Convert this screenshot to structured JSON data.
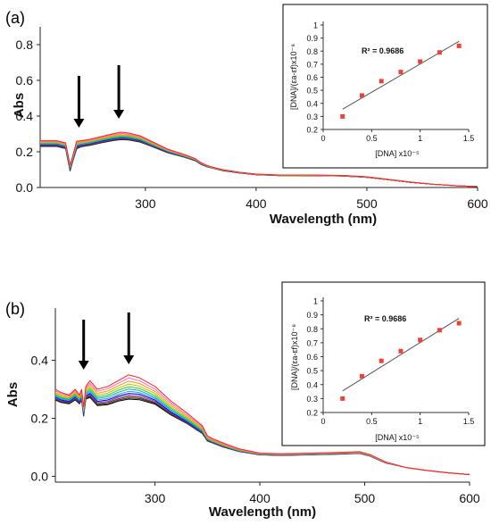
{
  "chart_data": [
    {
      "panel_label": "(a)",
      "type": "line",
      "xlabel": "Wavelength (nm)",
      "ylabel": "Abs",
      "xlim": [
        205,
        600
      ],
      "ylim": [
        0,
        0.9
      ],
      "xticks": [
        300,
        400,
        500,
        600
      ],
      "xtick_labels": [
        "300",
        "400",
        "500",
        "600"
      ],
      "yticks": [
        0,
        0.2,
        0.4,
        0.6,
        0.8
      ],
      "ytick_labels": [
        "0.0",
        "0.2",
        "0.4",
        "0.6",
        "0.8"
      ],
      "grid": false,
      "arrows_at_nm": [
        240,
        276
      ],
      "series_count": 12,
      "series_colors": [
        "#ff2020",
        "#ff66cc",
        "#ff9900",
        "#c0c000",
        "#33cc33",
        "#00b0b0",
        "#3399ff",
        "#0000cc",
        "#9933cc",
        "#663300",
        "#333333",
        "#000000"
      ],
      "spectrum_x": [
        205,
        210,
        220,
        228,
        232,
        235,
        238,
        242,
        250,
        260,
        270,
        278,
        285,
        295,
        305,
        320,
        335,
        345,
        350,
        355,
        360,
        370,
        385,
        400,
        420,
        450,
        480,
        500,
        520,
        540,
        560,
        580,
        600
      ],
      "spectra": [
        [
          0.262,
          0.262,
          0.262,
          0.25,
          0.125,
          0.19,
          0.26,
          0.262,
          0.27,
          0.285,
          0.3,
          0.31,
          0.305,
          0.29,
          0.26,
          0.215,
          0.185,
          0.162,
          0.14,
          0.125,
          0.115,
          0.1,
          0.085,
          0.075,
          0.07,
          0.07,
          0.067,
          0.06,
          0.045,
          0.03,
          0.018,
          0.01,
          0.005
        ],
        [
          0.258,
          0.258,
          0.258,
          0.246,
          0.122,
          0.186,
          0.255,
          0.258,
          0.266,
          0.281,
          0.295,
          0.303,
          0.299,
          0.285,
          0.256,
          0.212,
          0.183,
          0.16,
          0.139,
          0.124,
          0.114,
          0.099,
          0.085,
          0.075,
          0.07,
          0.07,
          0.067,
          0.06,
          0.045,
          0.03,
          0.018,
          0.01,
          0.005
        ],
        [
          0.255,
          0.255,
          0.255,
          0.243,
          0.12,
          0.183,
          0.25,
          0.254,
          0.262,
          0.277,
          0.29,
          0.297,
          0.294,
          0.281,
          0.252,
          0.21,
          0.181,
          0.159,
          0.138,
          0.123,
          0.113,
          0.099,
          0.084,
          0.074,
          0.07,
          0.069,
          0.066,
          0.059,
          0.045,
          0.03,
          0.018,
          0.01,
          0.005
        ],
        [
          0.252,
          0.252,
          0.252,
          0.24,
          0.117,
          0.18,
          0.246,
          0.25,
          0.258,
          0.273,
          0.286,
          0.292,
          0.29,
          0.277,
          0.249,
          0.208,
          0.179,
          0.158,
          0.137,
          0.122,
          0.113,
          0.098,
          0.084,
          0.074,
          0.069,
          0.069,
          0.066,
          0.059,
          0.044,
          0.03,
          0.018,
          0.01,
          0.005
        ],
        [
          0.249,
          0.249,
          0.249,
          0.237,
          0.114,
          0.177,
          0.242,
          0.247,
          0.255,
          0.269,
          0.282,
          0.288,
          0.286,
          0.274,
          0.246,
          0.206,
          0.178,
          0.157,
          0.136,
          0.122,
          0.112,
          0.098,
          0.084,
          0.074,
          0.069,
          0.069,
          0.066,
          0.059,
          0.044,
          0.03,
          0.018,
          0.01,
          0.005
        ],
        [
          0.246,
          0.246,
          0.246,
          0.234,
          0.111,
          0.174,
          0.238,
          0.244,
          0.252,
          0.266,
          0.278,
          0.284,
          0.282,
          0.27,
          0.243,
          0.204,
          0.176,
          0.156,
          0.135,
          0.121,
          0.112,
          0.097,
          0.083,
          0.073,
          0.069,
          0.068,
          0.065,
          0.058,
          0.044,
          0.03,
          0.018,
          0.01,
          0.005
        ],
        [
          0.243,
          0.243,
          0.243,
          0.231,
          0.108,
          0.171,
          0.234,
          0.241,
          0.249,
          0.263,
          0.275,
          0.281,
          0.279,
          0.267,
          0.241,
          0.202,
          0.175,
          0.155,
          0.134,
          0.12,
          0.111,
          0.097,
          0.083,
          0.073,
          0.068,
          0.068,
          0.065,
          0.058,
          0.044,
          0.03,
          0.018,
          0.01,
          0.005
        ],
        [
          0.24,
          0.24,
          0.24,
          0.228,
          0.105,
          0.168,
          0.23,
          0.238,
          0.246,
          0.26,
          0.272,
          0.278,
          0.276,
          0.264,
          0.239,
          0.2,
          0.174,
          0.154,
          0.133,
          0.12,
          0.111,
          0.096,
          0.082,
          0.073,
          0.068,
          0.068,
          0.065,
          0.058,
          0.043,
          0.029,
          0.018,
          0.01,
          0.005
        ],
        [
          0.237,
          0.237,
          0.237,
          0.225,
          0.102,
          0.165,
          0.226,
          0.235,
          0.243,
          0.257,
          0.269,
          0.275,
          0.273,
          0.262,
          0.237,
          0.199,
          0.173,
          0.153,
          0.132,
          0.119,
          0.11,
          0.096,
          0.082,
          0.072,
          0.068,
          0.067,
          0.064,
          0.057,
          0.043,
          0.029,
          0.018,
          0.01,
          0.005
        ],
        [
          0.234,
          0.234,
          0.234,
          0.222,
          0.099,
          0.162,
          0.222,
          0.232,
          0.24,
          0.254,
          0.266,
          0.272,
          0.27,
          0.259,
          0.235,
          0.197,
          0.172,
          0.152,
          0.131,
          0.118,
          0.11,
          0.095,
          0.081,
          0.072,
          0.067,
          0.067,
          0.064,
          0.057,
          0.043,
          0.029,
          0.018,
          0.01,
          0.005
        ],
        [
          0.232,
          0.232,
          0.232,
          0.22,
          0.096,
          0.16,
          0.219,
          0.23,
          0.238,
          0.252,
          0.264,
          0.27,
          0.268,
          0.257,
          0.233,
          0.196,
          0.171,
          0.151,
          0.131,
          0.118,
          0.11,
          0.095,
          0.081,
          0.072,
          0.067,
          0.067,
          0.064,
          0.057,
          0.043,
          0.029,
          0.018,
          0.01,
          0.005
        ],
        [
          0.23,
          0.23,
          0.23,
          0.218,
          0.093,
          0.158,
          0.217,
          0.228,
          0.236,
          0.25,
          0.262,
          0.268,
          0.266,
          0.255,
          0.232,
          0.195,
          0.17,
          0.15,
          0.13,
          0.117,
          0.109,
          0.094,
          0.081,
          0.071,
          0.067,
          0.066,
          0.064,
          0.057,
          0.043,
          0.029,
          0.018,
          0.01,
          0.005
        ]
      ],
      "inset": {
        "type": "scatter",
        "xlabel": "[DNA] x10⁻⁵",
        "ylabel": "[DNA]/(εa-εf)x10⁻⁸",
        "annotation": "R² = 0.9686",
        "xlim": [
          0,
          1.5
        ],
        "ylim": [
          0.2,
          1
        ],
        "xticks": [
          0,
          0.5,
          1,
          1.5
        ],
        "xtick_labels": [
          "0",
          "0.5",
          "1",
          "1.5"
        ],
        "yticks": [
          0.2,
          0.3,
          0.4,
          0.5,
          0.6,
          0.7,
          0.8,
          0.9,
          1
        ],
        "ytick_labels": [
          "0.2",
          "0.3",
          "0.4",
          "0.5",
          "0.6",
          "0.7",
          "0.8",
          "0.9",
          "1"
        ],
        "x": [
          0.2,
          0.4,
          0.6,
          0.8,
          1.0,
          1.2,
          1.4
        ],
        "y": [
          0.3,
          0.46,
          0.57,
          0.64,
          0.72,
          0.79,
          0.84
        ],
        "fit_x": [
          0.2,
          1.4
        ],
        "fit_y": [
          0.355,
          0.875
        ],
        "marker_color": "#e8443a",
        "fit_color": "#555555"
      }
    },
    {
      "panel_label": "(b)",
      "type": "line",
      "xlabel": "Wavelength (nm)",
      "ylabel": "Abs",
      "xlim": [
        205,
        600
      ],
      "ylim": [
        -0.02,
        0.58
      ],
      "xticks": [
        300,
        400,
        500,
        600
      ],
      "xtick_labels": [
        "300",
        "400",
        "500",
        "600"
      ],
      "yticks": [
        0,
        0.2,
        0.4
      ],
      "ytick_labels": [
        "0.0",
        "0.2",
        "0.4"
      ],
      "grid": false,
      "arrows_at_nm": [
        232,
        275
      ],
      "series_count": 12,
      "series_colors": [
        "#ff2020",
        "#ff66cc",
        "#ff9900",
        "#c0c000",
        "#33cc33",
        "#00b0b0",
        "#3399ff",
        "#0000cc",
        "#9933cc",
        "#663300",
        "#333333",
        "#000000"
      ],
      "spectrum_x": [
        205,
        210,
        218,
        224,
        228,
        230,
        232,
        234,
        238,
        245,
        255,
        265,
        275,
        285,
        300,
        315,
        330,
        345,
        350,
        355,
        365,
        380,
        400,
        420,
        450,
        480,
        495,
        505,
        520,
        540,
        560,
        580,
        600
      ],
      "spectra": [
        [
          0.3,
          0.29,
          0.28,
          0.3,
          0.28,
          0.3,
          0.24,
          0.31,
          0.33,
          0.3,
          0.31,
          0.33,
          0.35,
          0.34,
          0.31,
          0.26,
          0.22,
          0.175,
          0.14,
          0.13,
          0.115,
          0.095,
          0.08,
          0.078,
          0.08,
          0.083,
          0.085,
          0.075,
          0.05,
          0.03,
          0.02,
          0.012,
          0.006
        ],
        [
          0.295,
          0.286,
          0.277,
          0.296,
          0.277,
          0.296,
          0.236,
          0.304,
          0.322,
          0.293,
          0.302,
          0.321,
          0.339,
          0.33,
          0.301,
          0.253,
          0.214,
          0.171,
          0.137,
          0.127,
          0.112,
          0.093,
          0.079,
          0.077,
          0.079,
          0.082,
          0.084,
          0.074,
          0.049,
          0.03,
          0.02,
          0.012,
          0.006
        ],
        [
          0.29,
          0.281,
          0.273,
          0.291,
          0.273,
          0.291,
          0.232,
          0.298,
          0.315,
          0.286,
          0.294,
          0.312,
          0.328,
          0.32,
          0.293,
          0.246,
          0.209,
          0.167,
          0.134,
          0.125,
          0.11,
          0.092,
          0.078,
          0.076,
          0.078,
          0.081,
          0.083,
          0.073,
          0.049,
          0.03,
          0.02,
          0.012,
          0.006
        ],
        [
          0.286,
          0.277,
          0.27,
          0.287,
          0.27,
          0.287,
          0.228,
          0.293,
          0.308,
          0.279,
          0.287,
          0.304,
          0.318,
          0.311,
          0.286,
          0.24,
          0.204,
          0.163,
          0.132,
          0.123,
          0.108,
          0.091,
          0.077,
          0.076,
          0.078,
          0.081,
          0.082,
          0.073,
          0.048,
          0.03,
          0.02,
          0.012,
          0.006
        ],
        [
          0.282,
          0.273,
          0.267,
          0.283,
          0.267,
          0.283,
          0.225,
          0.288,
          0.302,
          0.273,
          0.28,
          0.297,
          0.309,
          0.303,
          0.279,
          0.235,
          0.2,
          0.16,
          0.13,
          0.121,
          0.107,
          0.09,
          0.077,
          0.075,
          0.077,
          0.08,
          0.082,
          0.072,
          0.048,
          0.03,
          0.02,
          0.012,
          0.006
        ],
        [
          0.278,
          0.27,
          0.264,
          0.279,
          0.264,
          0.279,
          0.222,
          0.284,
          0.296,
          0.268,
          0.274,
          0.29,
          0.301,
          0.296,
          0.273,
          0.23,
          0.196,
          0.157,
          0.128,
          0.12,
          0.106,
          0.089,
          0.076,
          0.075,
          0.077,
          0.08,
          0.081,
          0.072,
          0.048,
          0.03,
          0.02,
          0.012,
          0.006
        ],
        [
          0.275,
          0.267,
          0.261,
          0.276,
          0.261,
          0.276,
          0.219,
          0.28,
          0.291,
          0.263,
          0.268,
          0.283,
          0.293,
          0.289,
          0.268,
          0.226,
          0.193,
          0.155,
          0.127,
          0.119,
          0.105,
          0.088,
          0.076,
          0.074,
          0.076,
          0.079,
          0.081,
          0.071,
          0.047,
          0.03,
          0.02,
          0.012,
          0.006
        ],
        [
          0.272,
          0.264,
          0.258,
          0.273,
          0.258,
          0.273,
          0.216,
          0.276,
          0.286,
          0.258,
          0.263,
          0.277,
          0.286,
          0.283,
          0.263,
          0.222,
          0.19,
          0.153,
          0.126,
          0.118,
          0.104,
          0.088,
          0.075,
          0.074,
          0.076,
          0.079,
          0.08,
          0.071,
          0.047,
          0.03,
          0.02,
          0.012,
          0.006
        ],
        [
          0.269,
          0.261,
          0.256,
          0.27,
          0.256,
          0.27,
          0.214,
          0.273,
          0.282,
          0.254,
          0.258,
          0.272,
          0.28,
          0.277,
          0.259,
          0.219,
          0.188,
          0.151,
          0.125,
          0.117,
          0.103,
          0.087,
          0.075,
          0.073,
          0.075,
          0.078,
          0.08,
          0.071,
          0.047,
          0.03,
          0.02,
          0.012,
          0.006
        ],
        [
          0.267,
          0.259,
          0.254,
          0.267,
          0.254,
          0.267,
          0.212,
          0.27,
          0.278,
          0.25,
          0.254,
          0.267,
          0.275,
          0.272,
          0.255,
          0.216,
          0.186,
          0.15,
          0.124,
          0.116,
          0.102,
          0.087,
          0.074,
          0.073,
          0.075,
          0.078,
          0.08,
          0.07,
          0.047,
          0.03,
          0.02,
          0.012,
          0.006
        ],
        [
          0.265,
          0.257,
          0.252,
          0.265,
          0.252,
          0.265,
          0.21,
          0.268,
          0.275,
          0.247,
          0.25,
          0.263,
          0.27,
          0.268,
          0.252,
          0.214,
          0.184,
          0.149,
          0.123,
          0.115,
          0.102,
          0.086,
          0.074,
          0.073,
          0.075,
          0.078,
          0.079,
          0.07,
          0.046,
          0.03,
          0.02,
          0.012,
          0.006
        ],
        [
          0.263,
          0.255,
          0.25,
          0.263,
          0.25,
          0.263,
          0.208,
          0.266,
          0.272,
          0.244,
          0.247,
          0.259,
          0.266,
          0.264,
          0.249,
          0.212,
          0.183,
          0.148,
          0.122,
          0.115,
          0.101,
          0.086,
          0.074,
          0.072,
          0.074,
          0.077,
          0.079,
          0.07,
          0.046,
          0.03,
          0.02,
          0.012,
          0.006
        ]
      ],
      "inset": {
        "type": "scatter",
        "xlabel": "[DNA] x10⁻⁵",
        "ylabel": "[DNA]/(εa-εf)x10⁻⁸",
        "annotation": "R² = 0.9686",
        "xlim": [
          0,
          1.5
        ],
        "ylim": [
          0.2,
          1
        ],
        "xticks": [
          0,
          0.5,
          1,
          1.5
        ],
        "xtick_labels": [
          "0",
          "0.5",
          "1",
          "1.5"
        ],
        "yticks": [
          0.2,
          0.3,
          0.4,
          0.5,
          0.6,
          0.7,
          0.8,
          0.9,
          1
        ],
        "ytick_labels": [
          "0.2",
          "0.3",
          "0.4",
          "0.5",
          "0.6",
          "0.7",
          "0.8",
          "0.9",
          "1"
        ],
        "x": [
          0.2,
          0.4,
          0.6,
          0.8,
          1.0,
          1.2,
          1.4
        ],
        "y": [
          0.3,
          0.46,
          0.57,
          0.64,
          0.72,
          0.79,
          0.84
        ],
        "fit_x": [
          0.2,
          1.4
        ],
        "fit_y": [
          0.355,
          0.875
        ],
        "marker_color": "#e8443a",
        "fit_color": "#555555"
      }
    }
  ]
}
